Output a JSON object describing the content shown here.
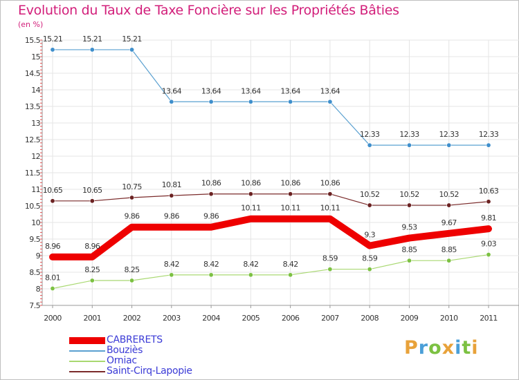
{
  "header": {
    "title": "Evolution du Taux de Taxe Foncière sur les Propriétés Bâties",
    "unit": "(en %)"
  },
  "brand": {
    "letters": [
      "P",
      "r",
      "o",
      "x",
      "i",
      "t",
      "i"
    ],
    "colors": [
      "#e8a23a",
      "#4a9fd8",
      "#7cc142",
      "#e8a23a",
      "#4a9fd8",
      "#7cc142",
      "#e8a23a"
    ]
  },
  "chart_data": {
    "type": "line",
    "title": "Evolution du Taux de Taxe Foncière sur les Propriétés Bâties",
    "ylabel": "(en %)",
    "xlabel": "",
    "categories": [
      "2000",
      "2001",
      "2002",
      "2003",
      "2004",
      "2005",
      "2006",
      "2007",
      "2008",
      "2009",
      "2010",
      "2011"
    ],
    "ylim": [
      7.5,
      15.5
    ],
    "yticks": [
      "7.5",
      "8",
      "8.5",
      "9",
      "9.5",
      "10",
      "10.5",
      "11",
      "11.5",
      "12",
      "12.5",
      "13",
      "13.5",
      "14",
      "14.5",
      "15",
      "15.5"
    ],
    "grid": true,
    "legend_position": "bottom-left",
    "series": [
      {
        "name": "Bouziès",
        "color": "#5aa0d0",
        "marker": "#3f8fcc",
        "emphasis": false,
        "values": [
          15.21,
          15.21,
          15.21,
          13.64,
          13.64,
          13.64,
          13.64,
          13.64,
          12.33,
          12.33,
          12.33,
          12.33
        ],
        "labels": [
          "15.21",
          "15.21",
          "15.21",
          "13.64",
          "13.64",
          "13.64",
          "13.64",
          "13.64",
          "12.33",
          "12.33",
          "12.33",
          "12.33"
        ]
      },
      {
        "name": "Saint-Cirq-Lapopie",
        "color": "#7a2a2a",
        "marker": "#6b2222",
        "emphasis": false,
        "values": [
          10.65,
          10.65,
          10.75,
          10.81,
          10.86,
          10.86,
          10.86,
          10.86,
          10.52,
          10.52,
          10.52,
          10.63
        ],
        "labels": [
          "10.65",
          "10.65",
          "10.75",
          "10.81",
          "10.86",
          "10.86",
          "10.86",
          "10.86",
          "10.52",
          "10.52",
          "10.52",
          "10.63"
        ]
      },
      {
        "name": "Orniac",
        "color": "#a8d870",
        "marker": "#7cc142",
        "emphasis": false,
        "values": [
          8.01,
          8.25,
          8.25,
          8.42,
          8.42,
          8.42,
          8.42,
          8.59,
          8.59,
          8.85,
          8.85,
          9.03
        ],
        "labels": [
          "8.01",
          "8.25",
          "8.25",
          "8.42",
          "8.42",
          "8.42",
          "8.42",
          "8.59",
          "8.59",
          "8.85",
          "8.85",
          "9.03"
        ]
      },
      {
        "name": "CABRERETS",
        "color": "#ee0000",
        "marker": "#ee0000",
        "emphasis": true,
        "values": [
          8.96,
          8.96,
          9.86,
          9.86,
          9.86,
          10.11,
          10.11,
          10.11,
          9.3,
          9.53,
          9.67,
          9.81
        ],
        "labels": [
          "8.96",
          "8.96",
          "9.86",
          "9.86",
          "9.86",
          "10.11",
          "10.11",
          "10.11",
          "9.3",
          "9.53",
          "9.67",
          "9.81"
        ]
      }
    ],
    "legend": [
      {
        "name": "CABRERETS",
        "color": "#ee0000",
        "thick": true
      },
      {
        "name": "Bouziès",
        "color": "#5aa0d0",
        "thick": false
      },
      {
        "name": "Orniac",
        "color": "#a8d870",
        "thick": false
      },
      {
        "name": "Saint-Cirq-Lapopie",
        "color": "#7a2a2a",
        "thick": false
      }
    ]
  }
}
